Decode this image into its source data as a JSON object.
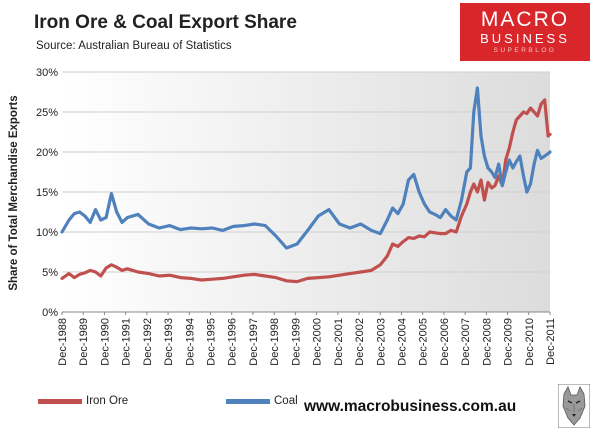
{
  "header": {
    "title": "Iron Ore & Coal Export Share",
    "subtitle": "Source:  Australian Bureau of Statistics"
  },
  "logo": {
    "line1": "MACRO",
    "line2": "BUSINESS",
    "line3": "SUPERBLOG"
  },
  "website": "www.macrobusiness.com.au",
  "colors": {
    "iron_ore": "#c0504d",
    "coal": "#4f81bd",
    "logo_bg": "#d8262b"
  },
  "icons": {
    "mascot": "wolf-icon"
  },
  "chart_data": {
    "type": "line",
    "title": "Iron Ore & Coal Export Share",
    "xlabel": "",
    "ylabel": "Share of Total Merchandise Exports",
    "ylim": [
      0,
      30
    ],
    "yticks": [
      "0%",
      "5%",
      "10%",
      "15%",
      "20%",
      "25%",
      "30%"
    ],
    "xticks": [
      "Dec-1988",
      "Dec-1989",
      "Dec-1990",
      "Dec-1991",
      "Dec-1992",
      "Dec-1993",
      "Dec-1994",
      "Dec-1995",
      "Dec-1996",
      "Dec-1997",
      "Dec-1998",
      "Dec-1999",
      "Dec-2000",
      "Dec-2001",
      "Dec-2002",
      "Dec-2003",
      "Dec-2004",
      "Dec-2005",
      "Dec-2006",
      "Dec-2007",
      "Dec-2008",
      "Dec-2009",
      "Dec-2010",
      "Dec-2011"
    ],
    "grid": true,
    "legend_position": "bottom-left",
    "x": [
      1988.92,
      1989.25,
      1989.5,
      1989.75,
      1990.0,
      1990.25,
      1990.5,
      1990.75,
      1991.0,
      1991.25,
      1991.5,
      1991.75,
      1992.0,
      1992.5,
      1993.0,
      1993.5,
      1994.0,
      1994.5,
      1995.0,
      1995.5,
      1996.0,
      1996.5,
      1997.0,
      1997.5,
      1998.0,
      1998.5,
      1999.0,
      1999.5,
      2000.0,
      2000.5,
      2001.0,
      2001.5,
      2002.0,
      2002.5,
      2003.0,
      2003.5,
      2003.92,
      2004.25,
      2004.5,
      2004.75,
      2005.0,
      2005.25,
      2005.5,
      2005.75,
      2006.0,
      2006.25,
      2006.5,
      2006.75,
      2007.0,
      2007.25,
      2007.5,
      2007.75,
      2008.0,
      2008.17,
      2008.33,
      2008.5,
      2008.67,
      2008.83,
      2009.0,
      2009.17,
      2009.33,
      2009.5,
      2009.67,
      2009.83,
      2010.0,
      2010.17,
      2010.33,
      2010.5,
      2010.67,
      2010.83,
      2011.0,
      2011.17,
      2011.33,
      2011.5,
      2011.67,
      2011.83,
      2011.92
    ],
    "series": [
      {
        "name": "Iron Ore",
        "values": [
          4.2,
          4.8,
          4.3,
          4.7,
          4.9,
          5.2,
          5.0,
          4.5,
          5.5,
          5.9,
          5.6,
          5.2,
          5.4,
          5.0,
          4.8,
          4.5,
          4.6,
          4.3,
          4.2,
          4.0,
          4.1,
          4.2,
          4.4,
          4.6,
          4.7,
          4.5,
          4.3,
          3.9,
          3.8,
          4.2,
          4.3,
          4.4,
          4.6,
          4.8,
          5.0,
          5.2,
          5.9,
          7.0,
          8.5,
          8.2,
          8.8,
          9.3,
          9.2,
          9.5,
          9.4,
          10.0,
          9.9,
          9.8,
          9.8,
          10.2,
          10.0,
          12.0,
          13.5,
          15.0,
          16.0,
          15.0,
          16.5,
          14.0,
          16.2,
          15.5,
          15.8,
          17.0,
          15.8,
          19.0,
          20.5,
          22.5,
          24.0,
          24.5,
          25.0,
          24.8,
          25.5,
          25.0,
          24.5,
          26.0,
          26.5,
          22.0,
          22.2
        ]
      },
      {
        "name": "Coal",
        "values": [
          10.0,
          11.5,
          12.3,
          12.5,
          12.0,
          11.2,
          12.8,
          11.5,
          11.8,
          14.8,
          12.5,
          11.2,
          11.8,
          12.2,
          11.0,
          10.5,
          10.8,
          10.3,
          10.5,
          10.4,
          10.5,
          10.2,
          10.7,
          10.8,
          11.0,
          10.8,
          9.5,
          8.0,
          8.5,
          10.2,
          12.0,
          12.8,
          11.0,
          10.5,
          11.0,
          10.2,
          9.8,
          11.5,
          13.0,
          12.3,
          13.5,
          16.5,
          17.2,
          15.0,
          13.5,
          12.5,
          12.2,
          11.8,
          12.8,
          12.0,
          11.5,
          14.0,
          17.5,
          18.0,
          25.0,
          28.0,
          22.0,
          19.5,
          18.0,
          17.5,
          16.8,
          18.5,
          15.8,
          17.5,
          19.0,
          18.0,
          18.8,
          19.5,
          17.0,
          15.0,
          16.0,
          18.5,
          20.2,
          19.2,
          19.5,
          19.8,
          20.0
        ]
      }
    ]
  }
}
